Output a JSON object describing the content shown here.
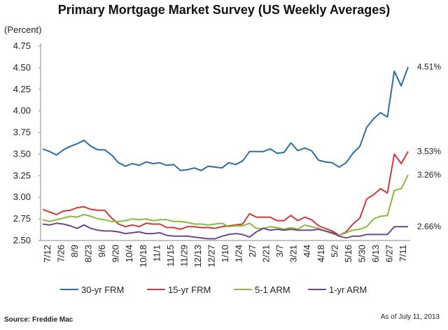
{
  "chart_data": {
    "type": "line",
    "title": "Primary Mortgage Market Survey (US Weekly Averages)",
    "ylabel": "(Percent)",
    "ylim": [
      2.5,
      4.75
    ],
    "yticks": [
      "4.75",
      "4.50",
      "4.25",
      "4.00",
      "3.75",
      "3.50",
      "3.25",
      "3.00",
      "2.75",
      "2.50"
    ],
    "x_tick_labels": [
      "7/12",
      "7/26",
      "8/9",
      "8/23",
      "9/6",
      "9/20",
      "10/4",
      "10/18",
      "11/1",
      "11/15",
      "11/29",
      "12/13",
      "12/27",
      "1/10",
      "1/24",
      "2/7",
      "2/21",
      "3/7",
      "3/21",
      "4/4",
      "4/18",
      "5/2",
      "5/16",
      "5/30",
      "6/13",
      "6/27",
      "7/11"
    ],
    "grid": false,
    "legend_position": "bottom",
    "series": [
      {
        "name": "30-yr FRM",
        "color": "#2e6da4",
        "end_label": "4.51%",
        "values": [
          3.56,
          3.53,
          3.49,
          3.55,
          3.59,
          3.62,
          3.66,
          3.59,
          3.55,
          3.55,
          3.49,
          3.4,
          3.36,
          3.39,
          3.37,
          3.41,
          3.39,
          3.4,
          3.37,
          3.38,
          3.31,
          3.32,
          3.34,
          3.31,
          3.36,
          3.35,
          3.34,
          3.4,
          3.38,
          3.42,
          3.53,
          3.53,
          3.53,
          3.56,
          3.51,
          3.52,
          3.63,
          3.54,
          3.57,
          3.54,
          3.43,
          3.41,
          3.4,
          3.35,
          3.4,
          3.51,
          3.59,
          3.81,
          3.91,
          3.98,
          3.93,
          4.46,
          4.29,
          4.51
        ]
      },
      {
        "name": "15-yr FRM",
        "color": "#cc3a3a",
        "end_label": "3.53%",
        "values": [
          2.86,
          2.83,
          2.8,
          2.84,
          2.85,
          2.88,
          2.89,
          2.86,
          2.85,
          2.85,
          2.76,
          2.69,
          2.66,
          2.68,
          2.66,
          2.7,
          2.69,
          2.69,
          2.65,
          2.65,
          2.63,
          2.66,
          2.66,
          2.65,
          2.65,
          2.64,
          2.66,
          2.67,
          2.68,
          2.69,
          2.81,
          2.77,
          2.77,
          2.77,
          2.73,
          2.73,
          2.79,
          2.73,
          2.77,
          2.74,
          2.67,
          2.64,
          2.61,
          2.56,
          2.6,
          2.69,
          2.76,
          2.98,
          3.03,
          3.1,
          3.05,
          3.5,
          3.39,
          3.53
        ]
      },
      {
        "name": "5-1 ARM",
        "color": "#8db83c",
        "end_label": "3.26%",
        "values": [
          2.74,
          2.72,
          2.74,
          2.76,
          2.78,
          2.77,
          2.8,
          2.78,
          2.75,
          2.74,
          2.72,
          2.72,
          2.73,
          2.75,
          2.74,
          2.75,
          2.73,
          2.74,
          2.74,
          2.72,
          2.72,
          2.71,
          2.69,
          2.69,
          2.68,
          2.69,
          2.7,
          2.66,
          2.67,
          2.67,
          2.7,
          2.64,
          2.64,
          2.66,
          2.65,
          2.63,
          2.65,
          2.63,
          2.68,
          2.66,
          2.64,
          2.61,
          2.58,
          2.56,
          2.59,
          2.62,
          2.63,
          2.66,
          2.75,
          2.78,
          2.79,
          3.08,
          3.1,
          3.26
        ]
      },
      {
        "name": "1-yr ARM",
        "color": "#6b4a8b",
        "end_label": "2.66%",
        "values": [
          2.69,
          2.68,
          2.7,
          2.69,
          2.67,
          2.64,
          2.68,
          2.64,
          2.62,
          2.61,
          2.61,
          2.6,
          2.58,
          2.59,
          2.6,
          2.58,
          2.58,
          2.59,
          2.56,
          2.55,
          2.55,
          2.55,
          2.54,
          2.53,
          2.52,
          2.52,
          2.55,
          2.57,
          2.58,
          2.57,
          2.54,
          2.6,
          2.64,
          2.62,
          2.63,
          2.62,
          2.63,
          2.62,
          2.62,
          2.62,
          2.63,
          2.61,
          2.59,
          2.55,
          2.53,
          2.55,
          2.55,
          2.57,
          2.57,
          2.57,
          2.57,
          2.66,
          2.66,
          2.66
        ]
      }
    ]
  },
  "notes": {
    "source": "Source: Freddie Mac",
    "as_of": "As of July 11, 2013"
  }
}
